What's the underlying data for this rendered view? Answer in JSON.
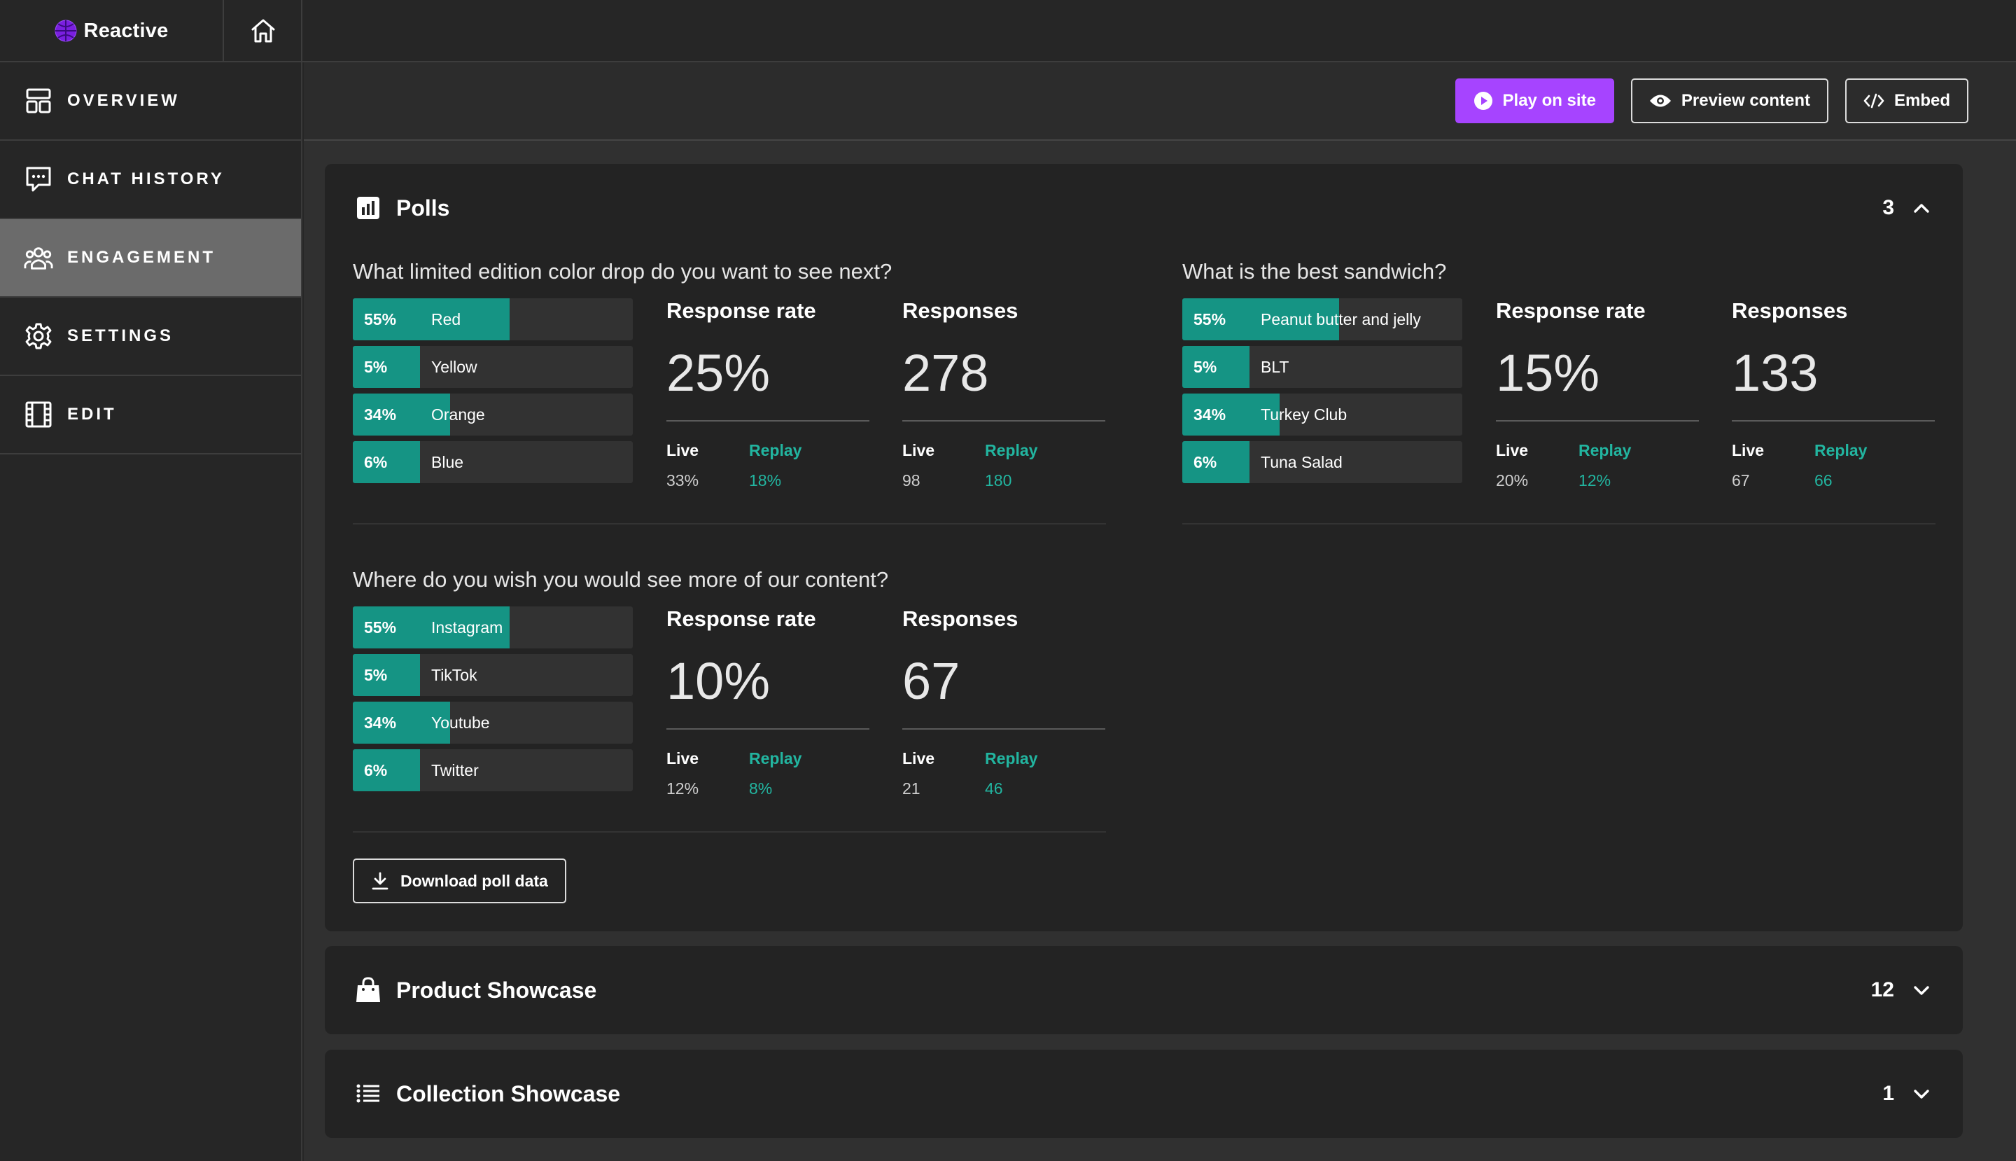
{
  "app": {
    "name": "Reactive"
  },
  "colors": {
    "accent": "#a644ff",
    "bar": "#159484",
    "replay": "#22b5a0"
  },
  "sidebar": {
    "items": [
      {
        "label": "OVERVIEW",
        "icon": "layout-icon"
      },
      {
        "label": "CHAT HISTORY",
        "icon": "chat-icon"
      },
      {
        "label": "ENGAGEMENT",
        "icon": "people-icon",
        "active": true
      },
      {
        "label": "SETTINGS",
        "icon": "gear-icon"
      },
      {
        "label": "EDIT",
        "icon": "film-icon"
      }
    ]
  },
  "actions": {
    "play_label": "Play on site",
    "preview_label": "Preview content",
    "embed_label": "Embed"
  },
  "polls": {
    "title": "Polls",
    "count": "3",
    "download_label": "Download poll data",
    "items": [
      {
        "question": "What limited edition color drop do you want to see next?",
        "options": [
          {
            "pct": "55%",
            "label": "Red",
            "value": 55
          },
          {
            "pct": "5%",
            "label": "Yellow",
            "value": 5
          },
          {
            "pct": "34%",
            "label": "Orange",
            "value": 34
          },
          {
            "pct": "6%",
            "label": "Blue",
            "value": 6
          }
        ],
        "response_rate": {
          "heading": "Response rate",
          "value": "25%",
          "live_label": "Live",
          "live": "33%",
          "replay_label": "Replay",
          "replay": "18%"
        },
        "responses": {
          "heading": "Responses",
          "value": "278",
          "live_label": "Live",
          "live": "98",
          "replay_label": "Replay",
          "replay": "180"
        }
      },
      {
        "question": "What is the best sandwich?",
        "options": [
          {
            "pct": "55%",
            "label": "Peanut butter and jelly",
            "value": 55
          },
          {
            "pct": "5%",
            "label": "BLT",
            "value": 5
          },
          {
            "pct": "34%",
            "label": "Turkey Club",
            "value": 34
          },
          {
            "pct": "6%",
            "label": "Tuna Salad",
            "value": 6
          }
        ],
        "response_rate": {
          "heading": "Response rate",
          "value": "15%",
          "live_label": "Live",
          "live": "20%",
          "replay_label": "Replay",
          "replay": "12%"
        },
        "responses": {
          "heading": "Responses",
          "value": "133",
          "live_label": "Live",
          "live": "67",
          "replay_label": "Replay",
          "replay": "66"
        }
      },
      {
        "question": "Where do you wish you would see more of our content?",
        "options": [
          {
            "pct": "55%",
            "label": "Instagram",
            "value": 55
          },
          {
            "pct": "5%",
            "label": "TikTok",
            "value": 5
          },
          {
            "pct": "34%",
            "label": "Youtube",
            "value": 34
          },
          {
            "pct": "6%",
            "label": "Twitter",
            "value": 6
          }
        ],
        "response_rate": {
          "heading": "Response rate",
          "value": "10%",
          "live_label": "Live",
          "live": "12%",
          "replay_label": "Replay",
          "replay": "8%"
        },
        "responses": {
          "heading": "Responses",
          "value": "67",
          "live_label": "Live",
          "live": "21",
          "replay_label": "Replay",
          "replay": "46"
        }
      }
    ]
  },
  "product_showcase": {
    "title": "Product Showcase",
    "count": "12"
  },
  "collection_showcase": {
    "title": "Collection Showcase",
    "count": "1"
  }
}
